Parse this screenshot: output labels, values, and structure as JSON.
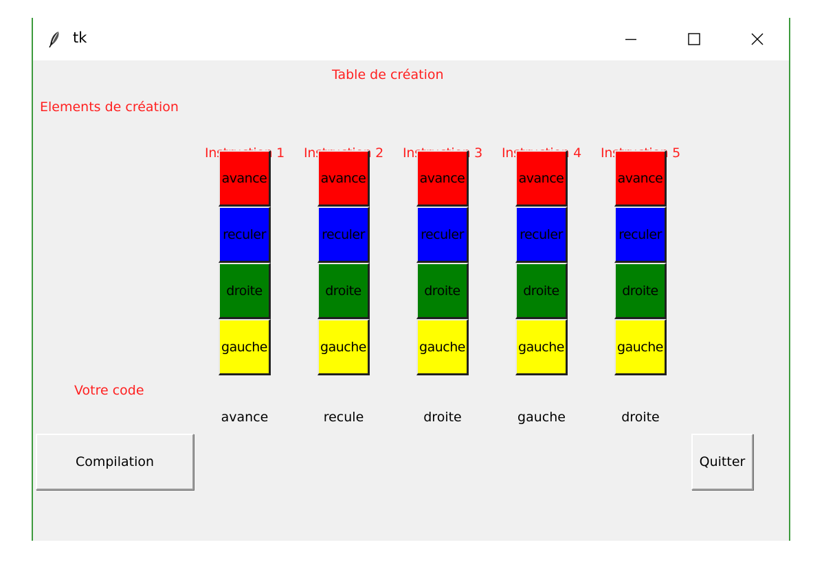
{
  "window": {
    "title": "tk",
    "controls": {
      "minimize": "minimize-icon",
      "maximize": "maximize-icon",
      "close": "close-icon"
    }
  },
  "labels": {
    "table_title": "Table de création",
    "elements_title": "Elements de création",
    "code_title": "Votre code"
  },
  "columns": [
    {
      "header": "Instruction 1",
      "buttons": [
        {
          "label": "avance",
          "color": "#ff0000"
        },
        {
          "label": "reculer",
          "color": "#0000ff"
        },
        {
          "label": "droite",
          "color": "#008000"
        },
        {
          "label": "gauche",
          "color": "#ffff00"
        }
      ],
      "selected": "avance"
    },
    {
      "header": "Instruction 2",
      "buttons": [
        {
          "label": "avance",
          "color": "#ff0000"
        },
        {
          "label": "reculer",
          "color": "#0000ff"
        },
        {
          "label": "droite",
          "color": "#008000"
        },
        {
          "label": "gauche",
          "color": "#ffff00"
        }
      ],
      "selected": "recule"
    },
    {
      "header": "Instruction 3",
      "buttons": [
        {
          "label": "avance",
          "color": "#ff0000"
        },
        {
          "label": "reculer",
          "color": "#0000ff"
        },
        {
          "label": "droite",
          "color": "#008000"
        },
        {
          "label": "gauche",
          "color": "#ffff00"
        }
      ],
      "selected": "droite"
    },
    {
      "header": "Instruction 4",
      "buttons": [
        {
          "label": "avance",
          "color": "#ff0000"
        },
        {
          "label": "reculer",
          "color": "#0000ff"
        },
        {
          "label": "droite",
          "color": "#008000"
        },
        {
          "label": "gauche",
          "color": "#ffff00"
        }
      ],
      "selected": "gauche"
    },
    {
      "header": "Instruction 5",
      "buttons": [
        {
          "label": "avance",
          "color": "#ff0000"
        },
        {
          "label": "reculer",
          "color": "#0000ff"
        },
        {
          "label": "droite",
          "color": "#008000"
        },
        {
          "label": "gauche",
          "color": "#ffff00"
        }
      ],
      "selected": "droite"
    }
  ],
  "buttons": {
    "compile": "Compilation",
    "quit": "Quitter"
  },
  "colors": {
    "label_red": "#ff2020",
    "window_bg": "#f0f0f0"
  }
}
